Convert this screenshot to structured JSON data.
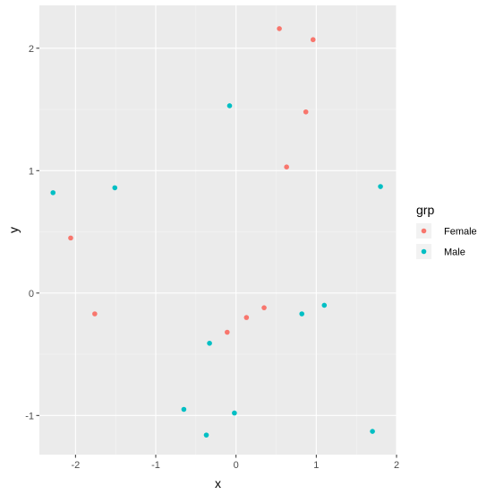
{
  "chart_data": {
    "type": "scatter",
    "xlabel": "x",
    "ylabel": "y",
    "xlim": [
      -2.45,
      2.0
    ],
    "ylim": [
      -1.32,
      2.35
    ],
    "x_ticks": [
      -2,
      -1,
      0,
      1,
      2
    ],
    "y_ticks": [
      -1,
      0,
      1,
      2
    ],
    "grid": true,
    "legend": {
      "title": "grp",
      "placement": "right"
    },
    "series": [
      {
        "name": "Female",
        "color": "#F8766D",
        "points": [
          {
            "x": 0.54,
            "y": 2.16
          },
          {
            "x": 0.96,
            "y": 2.07
          },
          {
            "x": 0.87,
            "y": 1.48
          },
          {
            "x": 0.63,
            "y": 1.03
          },
          {
            "x": -2.06,
            "y": 0.45
          },
          {
            "x": -1.76,
            "y": -0.17
          },
          {
            "x": 0.35,
            "y": -0.12
          },
          {
            "x": 0.13,
            "y": -0.2
          },
          {
            "x": -0.11,
            "y": -0.32
          }
        ]
      },
      {
        "name": "Male",
        "color": "#00BFC4",
        "points": [
          {
            "x": -0.08,
            "y": 1.53
          },
          {
            "x": -2.28,
            "y": 0.82
          },
          {
            "x": -1.51,
            "y": 0.86
          },
          {
            "x": 1.8,
            "y": 0.87
          },
          {
            "x": 1.1,
            "y": -0.1
          },
          {
            "x": 0.82,
            "y": -0.17
          },
          {
            "x": -0.33,
            "y": -0.41
          },
          {
            "x": -0.65,
            "y": -0.95
          },
          {
            "x": -0.02,
            "y": -0.98
          },
          {
            "x": -0.37,
            "y": -1.16
          },
          {
            "x": 1.7,
            "y": -1.13
          }
        ]
      }
    ]
  }
}
